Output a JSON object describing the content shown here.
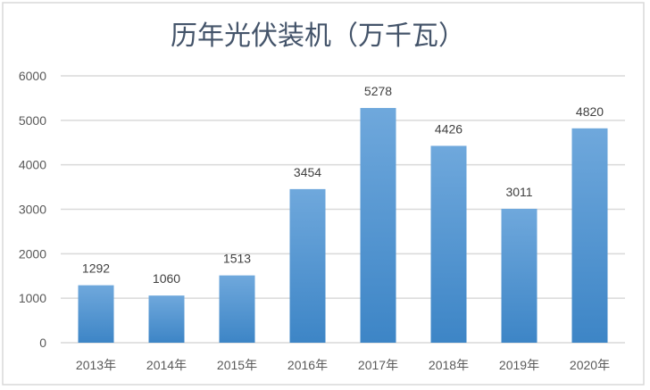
{
  "chart_data": {
    "type": "bar",
    "title": "历年光伏装机（万千瓦）",
    "categories": [
      "2013年",
      "2014年",
      "2015年",
      "2016年",
      "2017年",
      "2018年",
      "2019年",
      "2020年"
    ],
    "values": [
      1292,
      1060,
      1513,
      3454,
      5278,
      4426,
      3011,
      4820
    ],
    "data_labels": [
      "1292",
      "1060",
      "1513",
      "3454",
      "5278",
      "4426",
      "3011",
      "4820"
    ],
    "ylim": [
      0,
      6000
    ],
    "yticks": [
      "0",
      "1000",
      "2000",
      "3000",
      "4000",
      "5000",
      "6000"
    ],
    "grid": true,
    "legend": "none",
    "colors": {
      "bar_top": "#6fa8dc",
      "bar_bottom": "#3d85c6",
      "grid": "#d9d9d9",
      "title": "#44546a"
    }
  }
}
